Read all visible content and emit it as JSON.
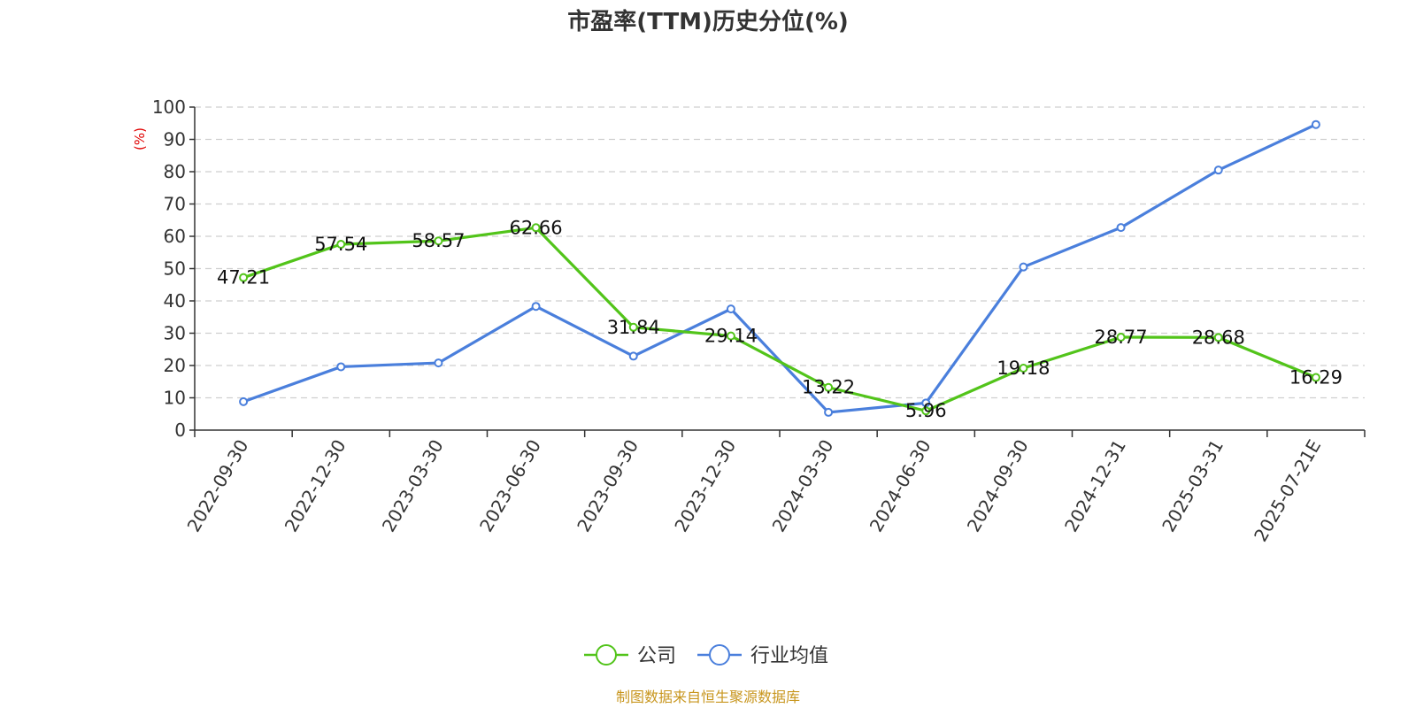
{
  "chart_data": {
    "type": "line",
    "title": "市盈率(TTM)历史分位(%)",
    "ylabel": "(%)",
    "xlabel": "",
    "ylim": [
      0,
      100
    ],
    "yticks": [
      0,
      10,
      20,
      30,
      40,
      50,
      60,
      70,
      80,
      90,
      100
    ],
    "grid": true,
    "legend_position": "bottom-center",
    "categories": [
      "2022-09-30",
      "2022-12-30",
      "2023-03-30",
      "2023-06-30",
      "2023-09-30",
      "2023-12-30",
      "2024-03-30",
      "2024-06-30",
      "2024-09-30",
      "2024-12-31",
      "2025-03-31",
      "2025-07-21E"
    ],
    "series": [
      {
        "name": "公司",
        "color": "#52c41a",
        "show_labels": true,
        "values": [
          47.21,
          57.54,
          58.57,
          62.66,
          31.84,
          29.14,
          13.22,
          5.96,
          19.18,
          28.77,
          28.68,
          16.29
        ]
      },
      {
        "name": "行业均值",
        "color": "#4a7fdc",
        "show_labels": false,
        "values": [
          8.8,
          19.6,
          20.8,
          38.3,
          22.9,
          37.5,
          5.5,
          8.4,
          50.5,
          62.7,
          80.5,
          94.6
        ]
      }
    ]
  },
  "source": "制图数据来自恒生聚源数据库"
}
